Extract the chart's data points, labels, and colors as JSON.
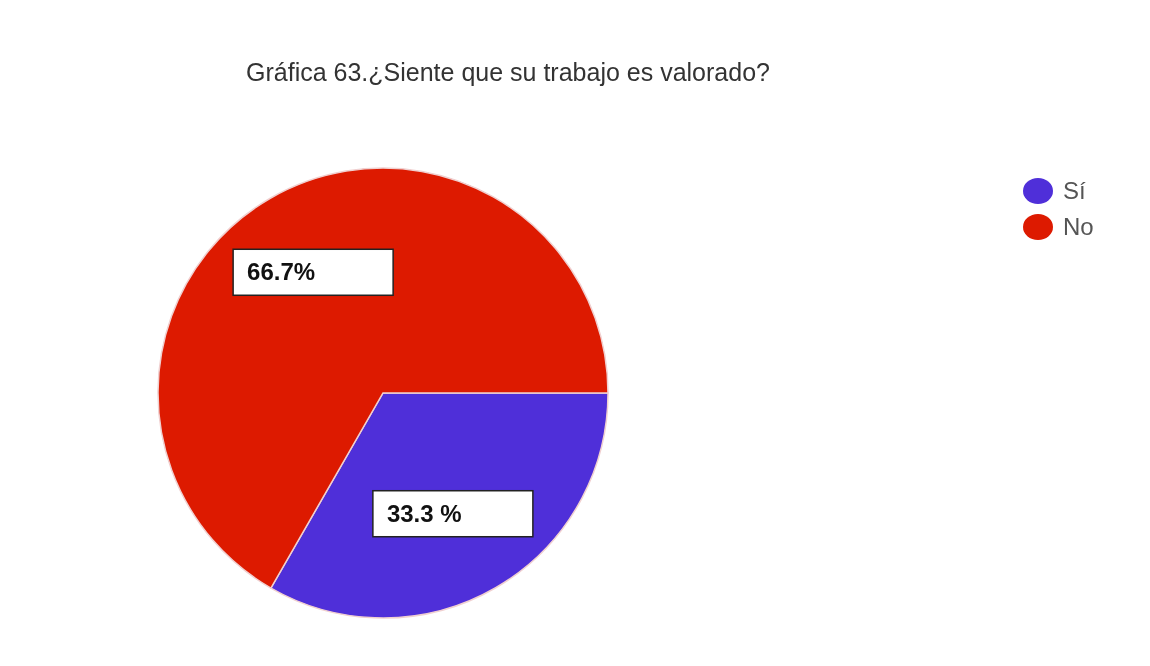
{
  "chart_data": {
    "type": "pie",
    "title": "Gráfica 63.¿Siente que su trabajo es valorado?",
    "categories": [
      "Sí",
      "No"
    ],
    "values": [
      33.3,
      66.7
    ],
    "colors": [
      "#4f2fd9",
      "#dd1a00"
    ],
    "value_labels": [
      "33.3 %",
      "66.7%"
    ],
    "legend": "top right"
  }
}
